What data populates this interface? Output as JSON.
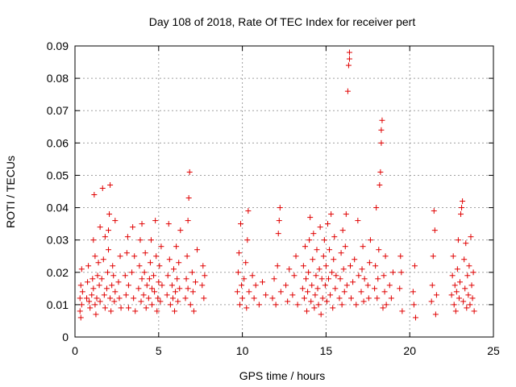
{
  "chart_data": {
    "type": "scatter",
    "title": "Day 108 of 2018, Rate Of TEC Index for receiver pert",
    "xlabel": "GPS time / hours",
    "ylabel": "ROTI / TECUs",
    "xlim": [
      0,
      25
    ],
    "ylim": [
      0,
      0.09
    ],
    "grid": true,
    "x_ticks": [
      0,
      5,
      10,
      15,
      20,
      25
    ],
    "x_tick_labels": [
      "0",
      "5",
      "10",
      "15",
      "20",
      "25"
    ],
    "y_ticks": [
      0,
      0.01,
      0.02,
      0.03,
      0.04,
      0.05,
      0.06,
      0.07,
      0.08,
      0.09
    ],
    "y_tick_labels": [
      "0",
      "0.01",
      "0.02",
      "0.03",
      "0.04",
      "0.05",
      "0.06",
      "0.07",
      "0.08",
      "0.09"
    ],
    "marker": "+",
    "color": "#e00000",
    "series": [
      {
        "name": "ROTI",
        "points": [
          [
            0.3,
            0.008
          ],
          [
            0.3,
            0.012
          ],
          [
            0.35,
            0.016
          ],
          [
            0.4,
            0.021
          ],
          [
            0.4,
            0.01
          ],
          [
            0.35,
            0.006
          ],
          [
            0.45,
            0.014
          ],
          [
            0.7,
            0.012
          ],
          [
            0.75,
            0.017
          ],
          [
            0.8,
            0.022
          ],
          [
            0.85,
            0.011
          ],
          [
            0.9,
            0.009
          ],
          [
            1.0,
            0.013
          ],
          [
            1.05,
            0.018
          ],
          [
            1.1,
            0.03
          ],
          [
            1.15,
            0.044
          ],
          [
            1.2,
            0.025
          ],
          [
            1.1,
            0.015
          ],
          [
            1.2,
            0.01
          ],
          [
            1.25,
            0.007
          ],
          [
            1.3,
            0.012
          ],
          [
            1.35,
            0.019
          ],
          [
            1.4,
            0.023
          ],
          [
            1.45,
            0.016
          ],
          [
            1.5,
            0.011
          ],
          [
            1.5,
            0.034
          ],
          [
            1.6,
            0.018
          ],
          [
            1.65,
            0.046
          ],
          [
            1.7,
            0.024
          ],
          [
            1.75,
            0.013
          ],
          [
            1.8,
            0.009
          ],
          [
            1.8,
            0.031
          ],
          [
            1.9,
            0.015
          ],
          [
            1.95,
            0.02
          ],
          [
            2.0,
            0.027
          ],
          [
            2.05,
            0.038
          ],
          [
            2.1,
            0.047
          ],
          [
            2.1,
            0.012
          ],
          [
            2.15,
            0.008
          ],
          [
            2.0,
            0.033
          ],
          [
            2.2,
            0.016
          ],
          [
            2.25,
            0.022
          ],
          [
            2.3,
            0.019
          ],
          [
            2.35,
            0.011
          ],
          [
            2.4,
            0.036
          ],
          [
            2.4,
            0.014
          ],
          [
            2.6,
            0.017
          ],
          [
            2.65,
            0.012
          ],
          [
            2.7,
            0.025
          ],
          [
            2.75,
            0.009
          ],
          [
            3.0,
            0.019
          ],
          [
            3.05,
            0.013
          ],
          [
            3.1,
            0.026
          ],
          [
            3.15,
            0.031
          ],
          [
            3.2,
            0.009
          ],
          [
            3.2,
            0.016
          ],
          [
            3.4,
            0.02
          ],
          [
            3.45,
            0.034
          ],
          [
            3.5,
            0.012
          ],
          [
            3.55,
            0.025
          ],
          [
            3.6,
            0.008
          ],
          [
            3.8,
            0.015
          ],
          [
            3.85,
            0.022
          ],
          [
            3.9,
            0.03
          ],
          [
            3.95,
            0.011
          ],
          [
            4.0,
            0.018
          ],
          [
            4.0,
            0.035
          ],
          [
            4.1,
            0.013
          ],
          [
            4.15,
            0.02
          ],
          [
            4.2,
            0.026
          ],
          [
            4.25,
            0.009
          ],
          [
            4.3,
            0.016
          ],
          [
            4.4,
            0.012
          ],
          [
            4.45,
            0.018
          ],
          [
            4.5,
            0.023
          ],
          [
            4.55,
            0.03
          ],
          [
            4.6,
            0.01
          ],
          [
            4.6,
            0.015
          ],
          [
            4.7,
            0.019
          ],
          [
            4.75,
            0.014
          ],
          [
            4.8,
            0.036
          ],
          [
            4.85,
            0.025
          ],
          [
            4.9,
            0.008
          ],
          [
            4.95,
            0.012
          ],
          [
            5.0,
            0.017
          ],
          [
            5.05,
            0.022
          ],
          [
            5.1,
            0.011
          ],
          [
            5.15,
            0.028
          ],
          [
            5.2,
            0.016
          ],
          [
            5.5,
            0.013
          ],
          [
            5.55,
            0.019
          ],
          [
            5.6,
            0.035
          ],
          [
            5.65,
            0.024
          ],
          [
            5.7,
            0.01
          ],
          [
            5.8,
            0.016
          ],
          [
            5.85,
            0.012
          ],
          [
            5.9,
            0.021
          ],
          [
            5.95,
            0.008
          ],
          [
            6.0,
            0.014
          ],
          [
            6.05,
            0.028
          ],
          [
            6.1,
            0.018
          ],
          [
            6.15,
            0.011
          ],
          [
            6.2,
            0.023
          ],
          [
            6.25,
            0.015
          ],
          [
            6.3,
            0.033
          ],
          [
            6.6,
            0.012
          ],
          [
            6.65,
            0.018
          ],
          [
            6.7,
            0.025
          ],
          [
            6.75,
            0.036
          ],
          [
            6.8,
            0.043
          ],
          [
            6.85,
            0.051
          ],
          [
            6.9,
            0.01
          ],
          [
            6.75,
            0.015
          ],
          [
            7.0,
            0.02
          ],
          [
            7.05,
            0.014
          ],
          [
            7.1,
            0.008
          ],
          [
            7.2,
            0.017
          ],
          [
            7.3,
            0.027
          ],
          [
            7.6,
            0.016
          ],
          [
            7.65,
            0.022
          ],
          [
            7.7,
            0.012
          ],
          [
            7.75,
            0.019
          ],
          [
            9.7,
            0.014
          ],
          [
            9.75,
            0.02
          ],
          [
            9.8,
            0.026
          ],
          [
            9.85,
            0.01
          ],
          [
            9.9,
            0.035
          ],
          [
            9.95,
            0.016
          ],
          [
            10.0,
            0.012
          ],
          [
            10.1,
            0.018
          ],
          [
            10.2,
            0.023
          ],
          [
            10.25,
            0.009
          ],
          [
            10.3,
            0.03
          ],
          [
            10.35,
            0.039
          ],
          [
            10.4,
            0.014
          ],
          [
            10.6,
            0.019
          ],
          [
            10.7,
            0.012
          ],
          [
            10.8,
            0.016
          ],
          [
            11.0,
            0.01
          ],
          [
            11.2,
            0.017
          ],
          [
            11.4,
            0.013
          ],
          [
            11.8,
            0.012
          ],
          [
            11.9,
            0.018
          ],
          [
            12.0,
            0.01
          ],
          [
            12.1,
            0.022
          ],
          [
            12.15,
            0.032
          ],
          [
            12.2,
            0.036
          ],
          [
            12.25,
            0.04
          ],
          [
            12.3,
            0.014
          ],
          [
            12.6,
            0.016
          ],
          [
            12.7,
            0.011
          ],
          [
            12.8,
            0.021
          ],
          [
            13.0,
            0.013
          ],
          [
            13.1,
            0.019
          ],
          [
            13.2,
            0.025
          ],
          [
            13.3,
            0.01
          ],
          [
            13.6,
            0.015
          ],
          [
            13.65,
            0.022
          ],
          [
            13.7,
            0.012
          ],
          [
            13.75,
            0.028
          ],
          [
            13.8,
            0.018
          ],
          [
            13.85,
            0.008
          ],
          [
            13.9,
            0.014
          ],
          [
            13.95,
            0.02
          ],
          [
            14.0,
            0.03
          ],
          [
            14.05,
            0.037
          ],
          [
            14.1,
            0.011
          ],
          [
            14.15,
            0.016
          ],
          [
            14.2,
            0.024
          ],
          [
            14.25,
            0.032
          ],
          [
            14.3,
            0.009
          ],
          [
            14.35,
            0.013
          ],
          [
            14.4,
            0.019
          ],
          [
            14.45,
            0.027
          ],
          [
            14.5,
            0.015
          ],
          [
            14.55,
            0.01
          ],
          [
            14.6,
            0.021
          ],
          [
            14.65,
            0.034
          ],
          [
            14.7,
            0.007
          ],
          [
            14.75,
            0.018
          ],
          [
            14.8,
            0.012
          ],
          [
            14.85,
            0.025
          ],
          [
            14.9,
            0.03
          ],
          [
            14.95,
            0.016
          ],
          [
            15.0,
            0.022
          ],
          [
            15.05,
            0.011
          ],
          [
            15.1,
            0.035
          ],
          [
            15.15,
            0.018
          ],
          [
            15.2,
            0.027
          ],
          [
            15.25,
            0.013
          ],
          [
            15.3,
            0.038
          ],
          [
            15.35,
            0.02
          ],
          [
            15.4,
            0.009
          ],
          [
            15.45,
            0.024
          ],
          [
            15.5,
            0.031
          ],
          [
            15.55,
            0.015
          ],
          [
            15.6,
            0.019
          ],
          [
            15.8,
            0.012
          ],
          [
            15.85,
            0.018
          ],
          [
            15.9,
            0.026
          ],
          [
            15.95,
            0.01
          ],
          [
            16.0,
            0.033
          ],
          [
            16.05,
            0.021
          ],
          [
            16.1,
            0.014
          ],
          [
            16.15,
            0.028
          ],
          [
            16.2,
            0.038
          ],
          [
            16.25,
            0.016
          ],
          [
            16.3,
            0.076
          ],
          [
            16.35,
            0.084
          ],
          [
            16.4,
            0.086
          ],
          [
            16.4,
            0.088
          ],
          [
            16.45,
            0.022
          ],
          [
            16.5,
            0.012
          ],
          [
            16.6,
            0.017
          ],
          [
            16.7,
            0.024
          ],
          [
            16.8,
            0.01
          ],
          [
            16.9,
            0.036
          ],
          [
            16.95,
            0.019
          ],
          [
            17.1,
            0.014
          ],
          [
            17.15,
            0.021
          ],
          [
            17.2,
            0.028
          ],
          [
            17.25,
            0.011
          ],
          [
            17.3,
            0.018
          ],
          [
            17.5,
            0.016
          ],
          [
            17.55,
            0.012
          ],
          [
            17.6,
            0.023
          ],
          [
            17.65,
            0.03
          ],
          [
            17.9,
            0.015
          ],
          [
            17.95,
            0.022
          ],
          [
            18.0,
            0.04
          ],
          [
            18.05,
            0.012
          ],
          [
            18.1,
            0.018
          ],
          [
            18.15,
            0.027
          ],
          [
            18.2,
            0.047
          ],
          [
            18.25,
            0.051
          ],
          [
            18.3,
            0.06
          ],
          [
            18.3,
            0.064
          ],
          [
            18.35,
            0.067
          ],
          [
            18.4,
            0.009
          ],
          [
            18.45,
            0.019
          ],
          [
            18.5,
            0.014
          ],
          [
            18.55,
            0.025
          ],
          [
            18.6,
            0.01
          ],
          [
            18.8,
            0.016
          ],
          [
            18.9,
            0.012
          ],
          [
            19.0,
            0.02
          ],
          [
            19.4,
            0.015
          ],
          [
            19.45,
            0.025
          ],
          [
            19.5,
            0.02
          ],
          [
            19.55,
            0.008
          ],
          [
            20.2,
            0.014
          ],
          [
            20.25,
            0.01
          ],
          [
            20.3,
            0.022
          ],
          [
            20.35,
            0.006
          ],
          [
            21.3,
            0.011
          ],
          [
            21.35,
            0.016
          ],
          [
            21.4,
            0.025
          ],
          [
            21.45,
            0.039
          ],
          [
            21.5,
            0.033
          ],
          [
            21.55,
            0.007
          ],
          [
            21.6,
            0.013
          ],
          [
            22.5,
            0.013
          ],
          [
            22.55,
            0.019
          ],
          [
            22.6,
            0.025
          ],
          [
            22.65,
            0.01
          ],
          [
            22.7,
            0.016
          ],
          [
            22.75,
            0.008
          ],
          [
            22.8,
            0.014
          ],
          [
            22.85,
            0.021
          ],
          [
            22.9,
            0.03
          ],
          [
            22.95,
            0.012
          ],
          [
            23.0,
            0.017
          ],
          [
            23.05,
            0.038
          ],
          [
            23.1,
            0.04
          ],
          [
            23.15,
            0.042
          ],
          [
            23.2,
            0.011
          ],
          [
            23.25,
            0.024
          ],
          [
            23.3,
            0.015
          ],
          [
            23.35,
            0.029
          ],
          [
            23.4,
            0.009
          ],
          [
            23.45,
            0.019
          ],
          [
            23.5,
            0.013
          ],
          [
            23.55,
            0.022
          ],
          [
            23.6,
            0.01
          ],
          [
            23.65,
            0.031
          ],
          [
            23.7,
            0.016
          ],
          [
            23.75,
            0.012
          ],
          [
            23.8,
            0.02
          ],
          [
            23.85,
            0.008
          ]
        ]
      }
    ]
  }
}
